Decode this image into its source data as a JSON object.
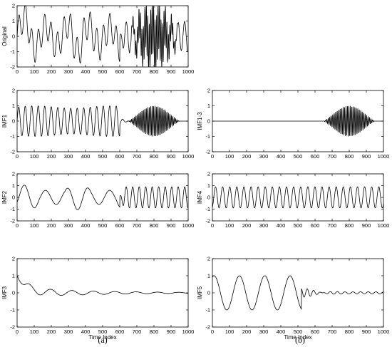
{
  "chart_data": [
    {
      "type": "line",
      "id": "original",
      "ylabel": "Original",
      "xlabel": "",
      "xlim": [
        0,
        1000
      ],
      "ylim": [
        -2,
        2
      ],
      "xticks": [
        0,
        100,
        200,
        300,
        400,
        500,
        600,
        700,
        800,
        900,
        1000
      ],
      "yticks": [
        -2,
        -1,
        0,
        1,
        2
      ],
      "signal": "IMF1 + IMF2 + IMF3 + IMF1-3"
    },
    {
      "type": "line",
      "id": "imf1",
      "ylabel": "IMF1",
      "xlabel": "",
      "xlim": [
        0,
        1000
      ],
      "ylim": [
        -2,
        2
      ],
      "xticks": [
        0,
        100,
        200,
        300,
        400,
        500,
        600,
        700,
        800,
        900,
        1000
      ],
      "yticks": [
        -2,
        -1,
        0,
        1,
        2
      ],
      "signal": "sinusoid ~16 cycles to x=600, then burst of amplitude 1 at x=650-950"
    },
    {
      "type": "line",
      "id": "imf1_3",
      "ylabel": "IMF1-3",
      "xlabel": "",
      "xlim": [
        0,
        1000
      ],
      "ylim": [
        -2,
        2
      ],
      "xticks": [
        0,
        100,
        200,
        300,
        400,
        500,
        600,
        700,
        800,
        900,
        1000
      ],
      "yticks": [
        -2,
        -1,
        0,
        1,
        2
      ],
      "signal": "zero except burst of amplitude 1 at x=650-950"
    },
    {
      "type": "line",
      "id": "imf2",
      "ylabel": "IMF2",
      "xlabel": "",
      "xlim": [
        0,
        1000
      ],
      "ylim": [
        -2,
        2
      ],
      "xticks": [
        0,
        100,
        200,
        300,
        400,
        500,
        600,
        700,
        800,
        900,
        1000
      ],
      "yticks": [
        -2,
        -1,
        0,
        1,
        2
      ],
      "signal": "slow oscillation amplitude ~1 to x=600, then ~10 cycles amplitude 0.9"
    },
    {
      "type": "line",
      "id": "imf4",
      "ylabel": "IMF4",
      "xlabel": "",
      "xlim": [
        0,
        1000
      ],
      "ylim": [
        -2,
        2
      ],
      "xticks": [
        0,
        100,
        200,
        300,
        400,
        500,
        600,
        700,
        800,
        900,
        1000
      ],
      "yticks": [
        -2,
        -1,
        0,
        1,
        2
      ],
      "signal": "steady sinusoid ~24 cycles amplitude 0.9"
    },
    {
      "type": "line",
      "id": "imf3",
      "ylabel": "IMF3",
      "xlabel": "Time Index",
      "xlim": [
        0,
        1000
      ],
      "ylim": [
        -2,
        2
      ],
      "xticks": [
        0,
        100,
        200,
        300,
        400,
        500,
        600,
        700,
        800,
        900,
        1000
      ],
      "yticks": [
        -2,
        -1,
        0,
        1,
        2
      ],
      "signal": "starts at 1, decays, small oscillations near 0"
    },
    {
      "type": "line",
      "id": "imf5",
      "ylabel": "IMF5",
      "xlabel": "Time Index",
      "xlim": [
        0,
        1000
      ],
      "ylim": [
        -2,
        2
      ],
      "xticks": [
        0,
        100,
        200,
        300,
        400,
        500,
        600,
        700,
        800,
        900,
        1000
      ],
      "yticks": [
        -2,
        -1,
        0,
        1,
        2
      ],
      "signal": "oscillation amplitude 1 period ~150 to x=500, then small wiggles near 0"
    }
  ],
  "captions": {
    "left": "(a)",
    "right": "(b)"
  }
}
